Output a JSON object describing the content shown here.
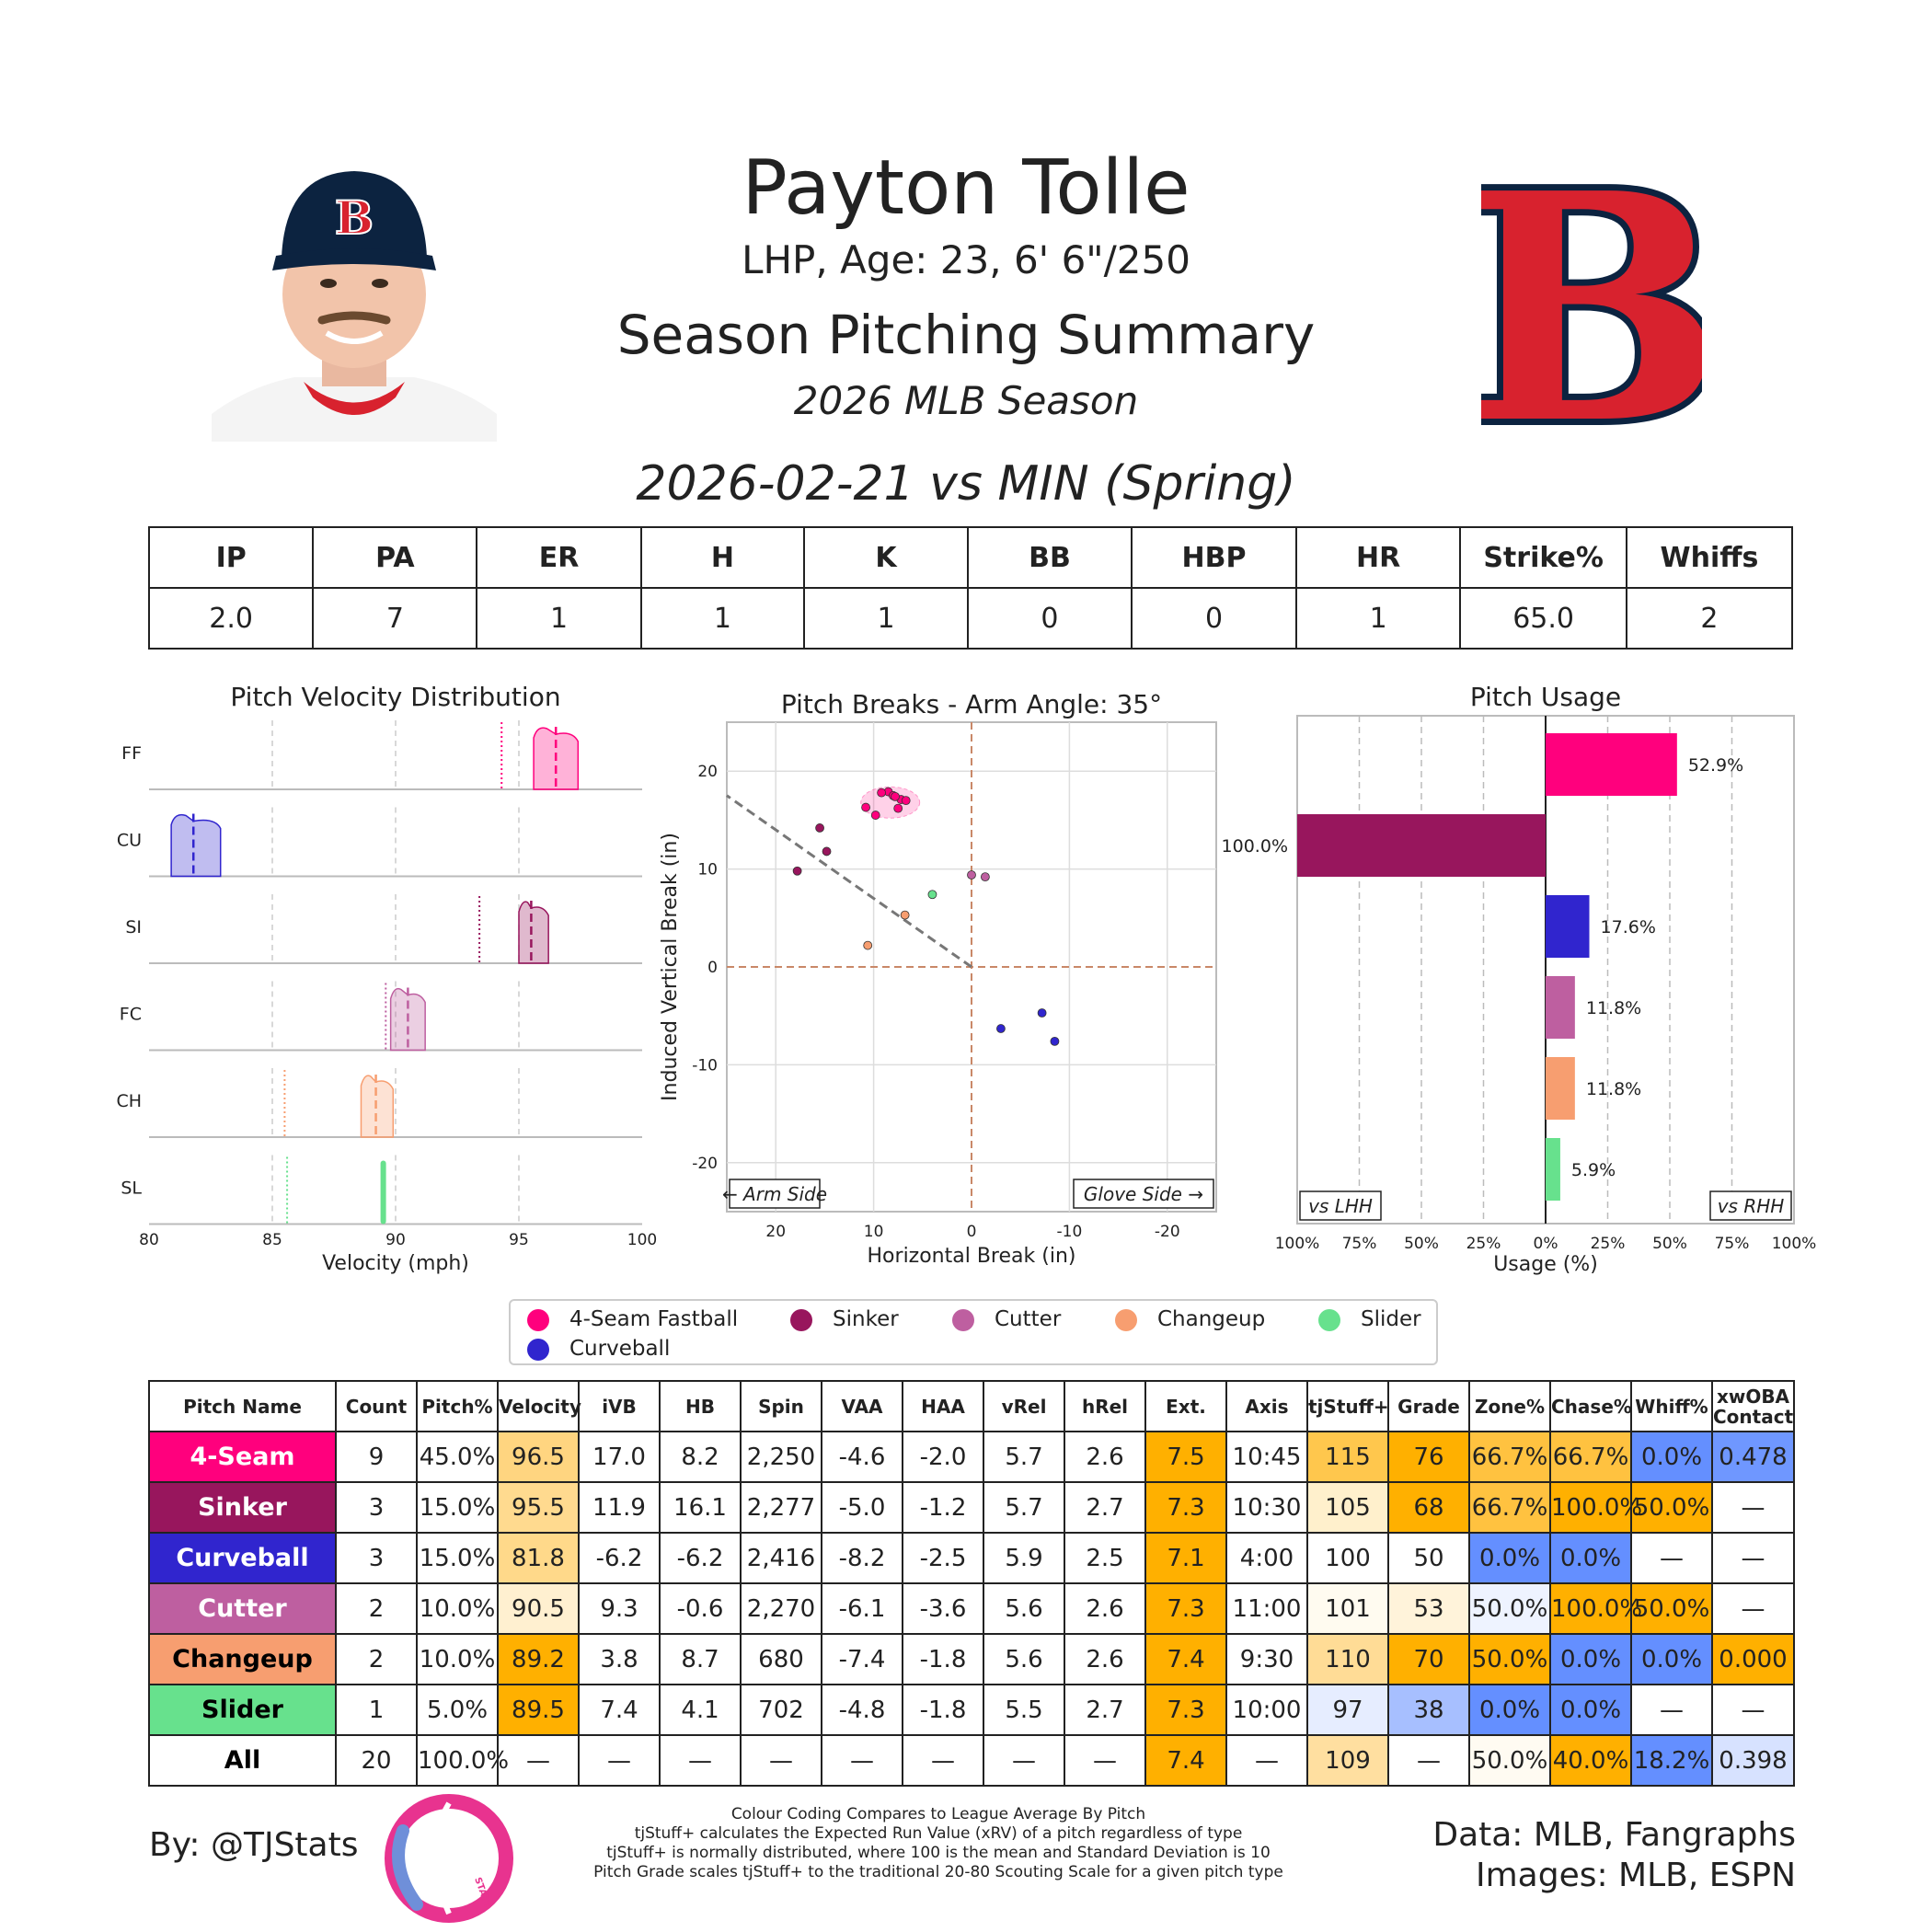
{
  "player": {
    "name": "Payton Tolle",
    "info": "LHP, Age: 23, 6' 6\"/250",
    "summary_title": "Season Pitching Summary",
    "season": "2026 MLB Season",
    "game": "2026-02-21 vs MIN (Spring)"
  },
  "stat_line": {
    "headers": [
      "IP",
      "PA",
      "ER",
      "H",
      "K",
      "BB",
      "HBP",
      "HR",
      "Strike%",
      "Whiffs"
    ],
    "values": [
      "2.0",
      "7",
      "1",
      "1",
      "1",
      "0",
      "0",
      "1",
      "65.0",
      "2"
    ]
  },
  "colors": {
    "4-Seam Fastball": "#FF007D",
    "Sinker": "#98165D",
    "Curveball": "#3025CE",
    "Cutter": "#BE5FA0",
    "Changeup": "#F79E70",
    "Slider": "#67E18D",
    "team_red": "#D8222E",
    "team_navy": "#0C2340"
  },
  "chart_data": [
    {
      "type": "area",
      "title": "Pitch Velocity Distribution",
      "xlabel": "Velocity (mph)",
      "xlim": [
        80,
        100
      ],
      "xticks": [
        "80",
        "85",
        "90",
        "95",
        "100"
      ],
      "series": [
        {
          "name": "FF",
          "pitch": "4-Seam Fastball",
          "range": [
            95.6,
            97.4
          ],
          "mean": 96.5,
          "league_mean": 94.3
        },
        {
          "name": "CU",
          "pitch": "Curveball",
          "range": [
            80.9,
            82.9
          ],
          "mean": 81.8,
          "league_mean": null
        },
        {
          "name": "SI",
          "pitch": "Sinker",
          "range": [
            95.0,
            96.2
          ],
          "mean": 95.5,
          "league_mean": 93.4
        },
        {
          "name": "FC",
          "pitch": "Cutter",
          "range": [
            89.8,
            91.2
          ],
          "mean": 90.5,
          "league_mean": 89.6
        },
        {
          "name": "CH",
          "pitch": "Changeup",
          "range": [
            88.6,
            89.9
          ],
          "mean": 89.2,
          "league_mean": 85.5
        },
        {
          "name": "SL",
          "pitch": "Slider",
          "range": [
            89.4,
            89.6
          ],
          "mean": 89.5,
          "league_mean": 85.6
        }
      ]
    },
    {
      "type": "scatter",
      "title": "Pitch Breaks - Arm Angle: 35°",
      "xlabel": "Horizontal Break (in)",
      "ylabel": "Induced Vertical Break (in)",
      "xlim": [
        25,
        -25
      ],
      "ylim": [
        -25,
        25
      ],
      "xticks": [
        "20",
        "10",
        "0",
        "-10",
        "-20"
      ],
      "yticks": [
        "20",
        "10",
        "0",
        "-10",
        "-20"
      ],
      "annotations": [
        "← Arm Side",
        "Glove Side →"
      ],
      "arm_angle_deg": 35,
      "points": [
        {
          "pitch": "4-Seam Fastball",
          "x": 8.5,
          "y": 17.9
        },
        {
          "pitch": "4-Seam Fastball",
          "x": 8.0,
          "y": 17.5
        },
        {
          "pitch": "4-Seam Fastball",
          "x": 7.2,
          "y": 17.1
        },
        {
          "pitch": "4-Seam Fastball",
          "x": 6.7,
          "y": 17.0
        },
        {
          "pitch": "4-Seam Fastball",
          "x": 7.5,
          "y": 16.2
        },
        {
          "pitch": "4-Seam Fastball",
          "x": 9.8,
          "y": 15.5
        },
        {
          "pitch": "4-Seam Fastball",
          "x": 10.8,
          "y": 16.3
        },
        {
          "pitch": "4-Seam Fastball",
          "x": 9.2,
          "y": 17.8
        },
        {
          "pitch": "4-Seam Fastball",
          "x": 7.8,
          "y": 17.4
        },
        {
          "pitch": "Sinker",
          "x": 15.5,
          "y": 14.2
        },
        {
          "pitch": "Sinker",
          "x": 14.8,
          "y": 11.8
        },
        {
          "pitch": "Sinker",
          "x": 17.8,
          "y": 9.8
        },
        {
          "pitch": "Cutter",
          "x": 0.0,
          "y": 9.4
        },
        {
          "pitch": "Cutter",
          "x": -1.4,
          "y": 9.2
        },
        {
          "pitch": "Changeup",
          "x": 6.8,
          "y": 5.3
        },
        {
          "pitch": "Changeup",
          "x": 10.6,
          "y": 2.2
        },
        {
          "pitch": "Slider",
          "x": 4.0,
          "y": 7.4
        },
        {
          "pitch": "Curveball",
          "x": -3.0,
          "y": -6.3
        },
        {
          "pitch": "Curveball",
          "x": -7.2,
          "y": -4.7
        },
        {
          "pitch": "Curveball",
          "x": -8.5,
          "y": -7.6
        }
      ]
    },
    {
      "type": "bar",
      "title": "Pitch Usage",
      "xlabel": "Usage (%)",
      "xlim": [
        -100,
        100
      ],
      "xticks": [
        "100%",
        "75%",
        "50%",
        "25%",
        "0%",
        "25%",
        "50%",
        "75%",
        "100%"
      ],
      "annotations": [
        "vs LHH",
        "vs RHH"
      ],
      "categories": [
        "4-Seam Fastball",
        "Sinker",
        "Curveball",
        "Cutter",
        "Changeup",
        "Slider"
      ],
      "series": [
        {
          "name": "vs LHH",
          "values": [
            0,
            100.0,
            0,
            0,
            0,
            0
          ]
        },
        {
          "name": "vs RHH",
          "values": [
            52.9,
            0,
            17.6,
            11.8,
            11.8,
            5.9
          ]
        }
      ],
      "labels": [
        "52.9%",
        "100.0%",
        "17.6%",
        "11.8%",
        "11.8%",
        "5.9%"
      ]
    }
  ],
  "legend": {
    "items": [
      {
        "label": "4-Seam Fastball",
        "color": "#FF007D"
      },
      {
        "label": "Sinker",
        "color": "#98165D"
      },
      {
        "label": "Cutter",
        "color": "#BE5FA0"
      },
      {
        "label": "Changeup",
        "color": "#F79E70"
      },
      {
        "label": "Slider",
        "color": "#67E18D"
      },
      {
        "label": "Curveball",
        "color": "#3025CE"
      }
    ]
  },
  "pitch_table": {
    "headers": [
      "Pitch Name",
      "Count",
      "Pitch%",
      "Velocity",
      "iVB",
      "HB",
      "Spin",
      "VAA",
      "HAA",
      "vRel",
      "hRel",
      "Ext.",
      "Axis",
      "tjStuff+",
      "Grade",
      "Zone%",
      "Chase%",
      "Whiff%",
      "xwOBA Contact"
    ],
    "rows": [
      {
        "name": "4-Seam",
        "name_bg": "#FF007D",
        "name_color": "#ffffff",
        "cells": [
          "9",
          "45.0%",
          "96.5",
          "17.0",
          "8.2",
          "2,250",
          "-4.6",
          "-2.0",
          "5.7",
          "2.6",
          "7.5",
          "10:45",
          "115",
          "76",
          "66.7%",
          "66.7%",
          "0.0%",
          "0.478"
        ],
        "bgs": [
          "",
          "",
          "#FFD580",
          "",
          "",
          "",
          "",
          "",
          "",
          "",
          "#FFB000",
          "",
          "#FFC74D",
          "#FFB000",
          "#FFC240",
          "#FFC240",
          "#648FFF",
          "#6F97FF"
        ]
      },
      {
        "name": "Sinker",
        "name_bg": "#98165D",
        "name_color": "#ffffff",
        "cells": [
          "3",
          "15.0%",
          "95.5",
          "11.9",
          "16.1",
          "2,277",
          "-5.0",
          "-1.2",
          "5.7",
          "2.7",
          "7.3",
          "10:30",
          "105",
          "68",
          "66.7%",
          "100.0%",
          "50.0%",
          "—"
        ],
        "bgs": [
          "",
          "",
          "#FFDA8F",
          "",
          "",
          "",
          "",
          "",
          "",
          "",
          "#FFB000",
          "",
          "#FFF0CC",
          "#FFB000",
          "#FFC240",
          "#FFB000",
          "#FFB000",
          ""
        ]
      },
      {
        "name": "Curveball",
        "name_bg": "#3025CE",
        "name_color": "#ffffff",
        "cells": [
          "3",
          "15.0%",
          "81.8",
          "-6.2",
          "-6.2",
          "2,416",
          "-8.2",
          "-2.5",
          "5.9",
          "2.5",
          "7.1",
          "4:00",
          "100",
          "50",
          "0.0%",
          "0.0%",
          "—",
          "—"
        ],
        "bgs": [
          "",
          "",
          "#FFD98A",
          "",
          "",
          "",
          "",
          "",
          "",
          "",
          "#FFB000",
          "",
          "",
          "",
          "#648FFF",
          "#648FFF",
          "",
          ""
        ]
      },
      {
        "name": "Cutter",
        "name_bg": "#BE5FA0",
        "name_color": "#ffffff",
        "cells": [
          "2",
          "10.0%",
          "90.5",
          "9.3",
          "-0.6",
          "2,270",
          "-6.1",
          "-3.6",
          "5.6",
          "2.6",
          "7.3",
          "11:00",
          "101",
          "53",
          "50.0%",
          "100.0%",
          "50.0%",
          "—"
        ],
        "bgs": [
          "",
          "",
          "#FFF0D0",
          "",
          "",
          "",
          "",
          "",
          "",
          "",
          "#FFB000",
          "",
          "#FFFBF0",
          "#FFF3DA",
          "#EEF3FF",
          "#FFB000",
          "#FFB000",
          ""
        ]
      },
      {
        "name": "Changeup",
        "name_bg": "#F79E70",
        "name_color": "#000000",
        "cells": [
          "2",
          "10.0%",
          "89.2",
          "3.8",
          "8.7",
          "680",
          "-7.4",
          "-1.8",
          "5.6",
          "2.6",
          "7.4",
          "9:30",
          "110",
          "70",
          "50.0%",
          "0.0%",
          "0.0%",
          "0.000"
        ],
        "bgs": [
          "",
          "",
          "#FFB000",
          "",
          "",
          "",
          "",
          "",
          "",
          "",
          "#FFB000",
          "",
          "#FFDC96",
          "#FFB000",
          "#FFB000",
          "#648FFF",
          "#648FFF",
          "#FFB000"
        ]
      },
      {
        "name": "Slider",
        "name_bg": "#67E18D",
        "name_color": "#000000",
        "cells": [
          "1",
          "5.0%",
          "89.5",
          "7.4",
          "4.1",
          "702",
          "-4.8",
          "-1.8",
          "5.5",
          "2.7",
          "7.3",
          "10:00",
          "97",
          "38",
          "0.0%",
          "0.0%",
          "—",
          "—"
        ],
        "bgs": [
          "",
          "",
          "#FFB000",
          "",
          "",
          "",
          "",
          "",
          "",
          "",
          "#FFB000",
          "",
          "#E6EDFF",
          "#A7BFFF",
          "#648FFF",
          "#648FFF",
          "",
          ""
        ]
      },
      {
        "name": "All",
        "name_bg": "#ffffff",
        "name_color": "#000000",
        "cells": [
          "20",
          "100.0%",
          "—",
          "—",
          "—",
          "—",
          "—",
          "—",
          "—",
          "—",
          "7.4",
          "—",
          "109",
          "—",
          "50.0%",
          "40.0%",
          "18.2%",
          "0.398"
        ],
        "bgs": [
          "",
          "",
          "",
          "",
          "",
          "",
          "",
          "",
          "",
          "",
          "#FFB000",
          "",
          "#FFDFA0",
          "",
          "#FFFBF2",
          "#FFB000",
          "#648FFF",
          "#D7E2FF"
        ]
      }
    ]
  },
  "footer": {
    "credit": "By: @TJStats",
    "logo_text": "STATS",
    "notes": [
      "Colour Coding Compares to League Average By Pitch",
      "tjStuff+ calculates the Expected Run Value (xRV) of a pitch regardless of type",
      "tjStuff+ is normally distributed, where 100 is the mean and Standard Deviation is 10",
      "Pitch Grade scales tjStuff+ to the traditional 20-80 Scouting Scale for a given pitch type"
    ],
    "data_source": "Data: MLB, Fangraphs",
    "images_source": "Images: MLB, ESPN"
  }
}
